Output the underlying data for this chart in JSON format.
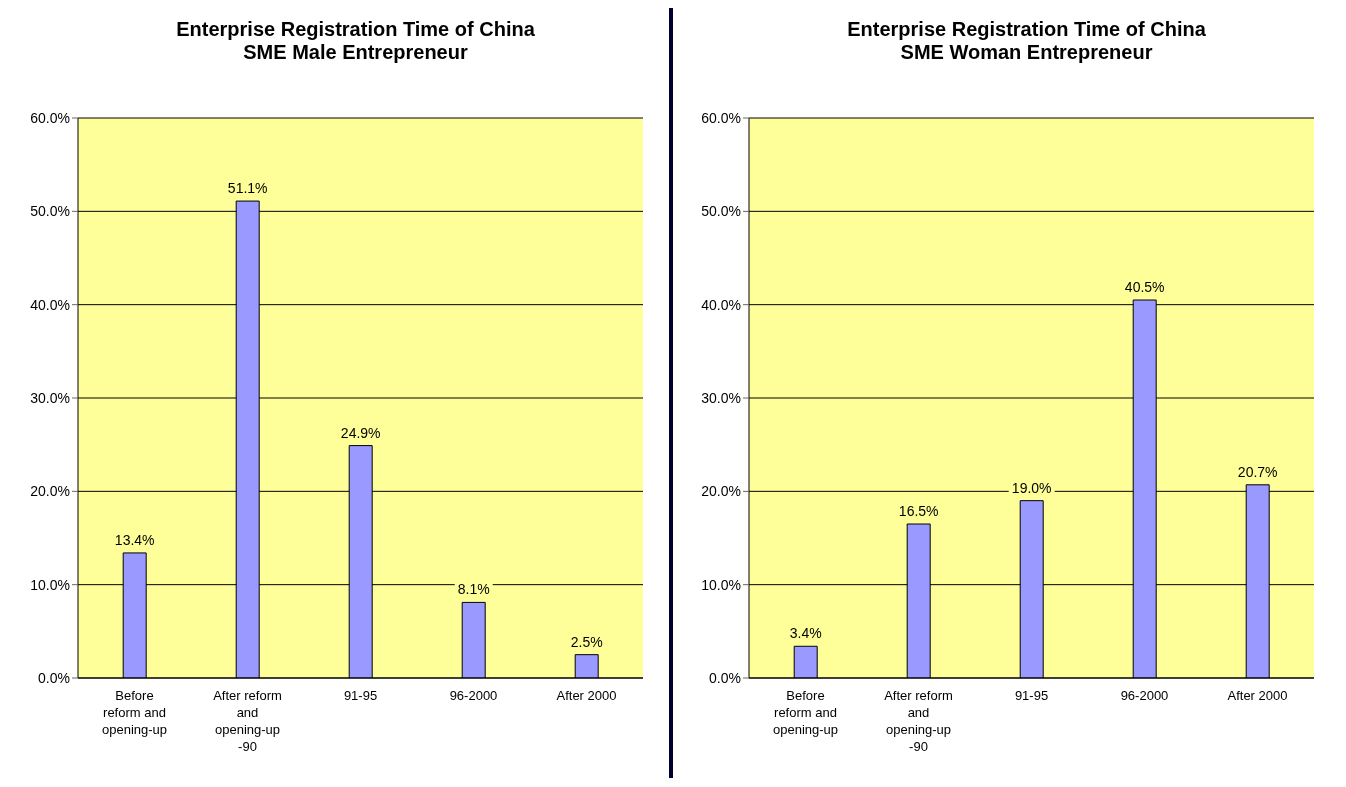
{
  "chart_data": [
    {
      "type": "bar",
      "title": "Enterprise Registration Time of China",
      "subtitle": "SME Male Entrepreneur",
      "categories": [
        "Before reform and opening-up",
        "After reform and opening-up -90",
        "91-95",
        "96-2000",
        "After 2000"
      ],
      "values": [
        13.4,
        51.1,
        24.9,
        8.1,
        2.5
      ],
      "value_labels": [
        "13.4%",
        "51.1%",
        "24.9%",
        "8.1%",
        "2.5%"
      ],
      "color": "#9999ff",
      "ylim": [
        0,
        60
      ],
      "yticks": [
        {
          "value": 0,
          "label": "0.0%"
        },
        {
          "value": 10,
          "label": "10.0%"
        },
        {
          "value": 20,
          "label": "20.0%"
        },
        {
          "value": 30,
          "label": "30.0%"
        },
        {
          "value": 40,
          "label": "40.0%"
        },
        {
          "value": 50,
          "label": "50.0%"
        },
        {
          "value": 60,
          "label": "60.0%"
        }
      ],
      "grid": "y"
    },
    {
      "type": "bar",
      "title": "Enterprise Registration Time of China",
      "subtitle": "SME Woman Entrepreneur",
      "categories": [
        "Before reform and opening-up",
        "After reform and opening-up -90",
        "91-95",
        "96-2000",
        "After 2000"
      ],
      "values": [
        3.4,
        16.5,
        19.0,
        40.5,
        20.7
      ],
      "value_labels": [
        "3.4%",
        "16.5%",
        "19.0%",
        "40.5%",
        "20.7%"
      ],
      "color": "#9999ff",
      "ylim": [
        0,
        60
      ],
      "yticks": [
        {
          "value": 0,
          "label": "0.0%"
        },
        {
          "value": 10,
          "label": "10.0%"
        },
        {
          "value": 20,
          "label": "20.0%"
        },
        {
          "value": 30,
          "label": "30.0%"
        },
        {
          "value": 40,
          "label": "40.0%"
        },
        {
          "value": 50,
          "label": "50.0%"
        },
        {
          "value": 60,
          "label": "60.0%"
        }
      ],
      "grid": "y"
    }
  ]
}
